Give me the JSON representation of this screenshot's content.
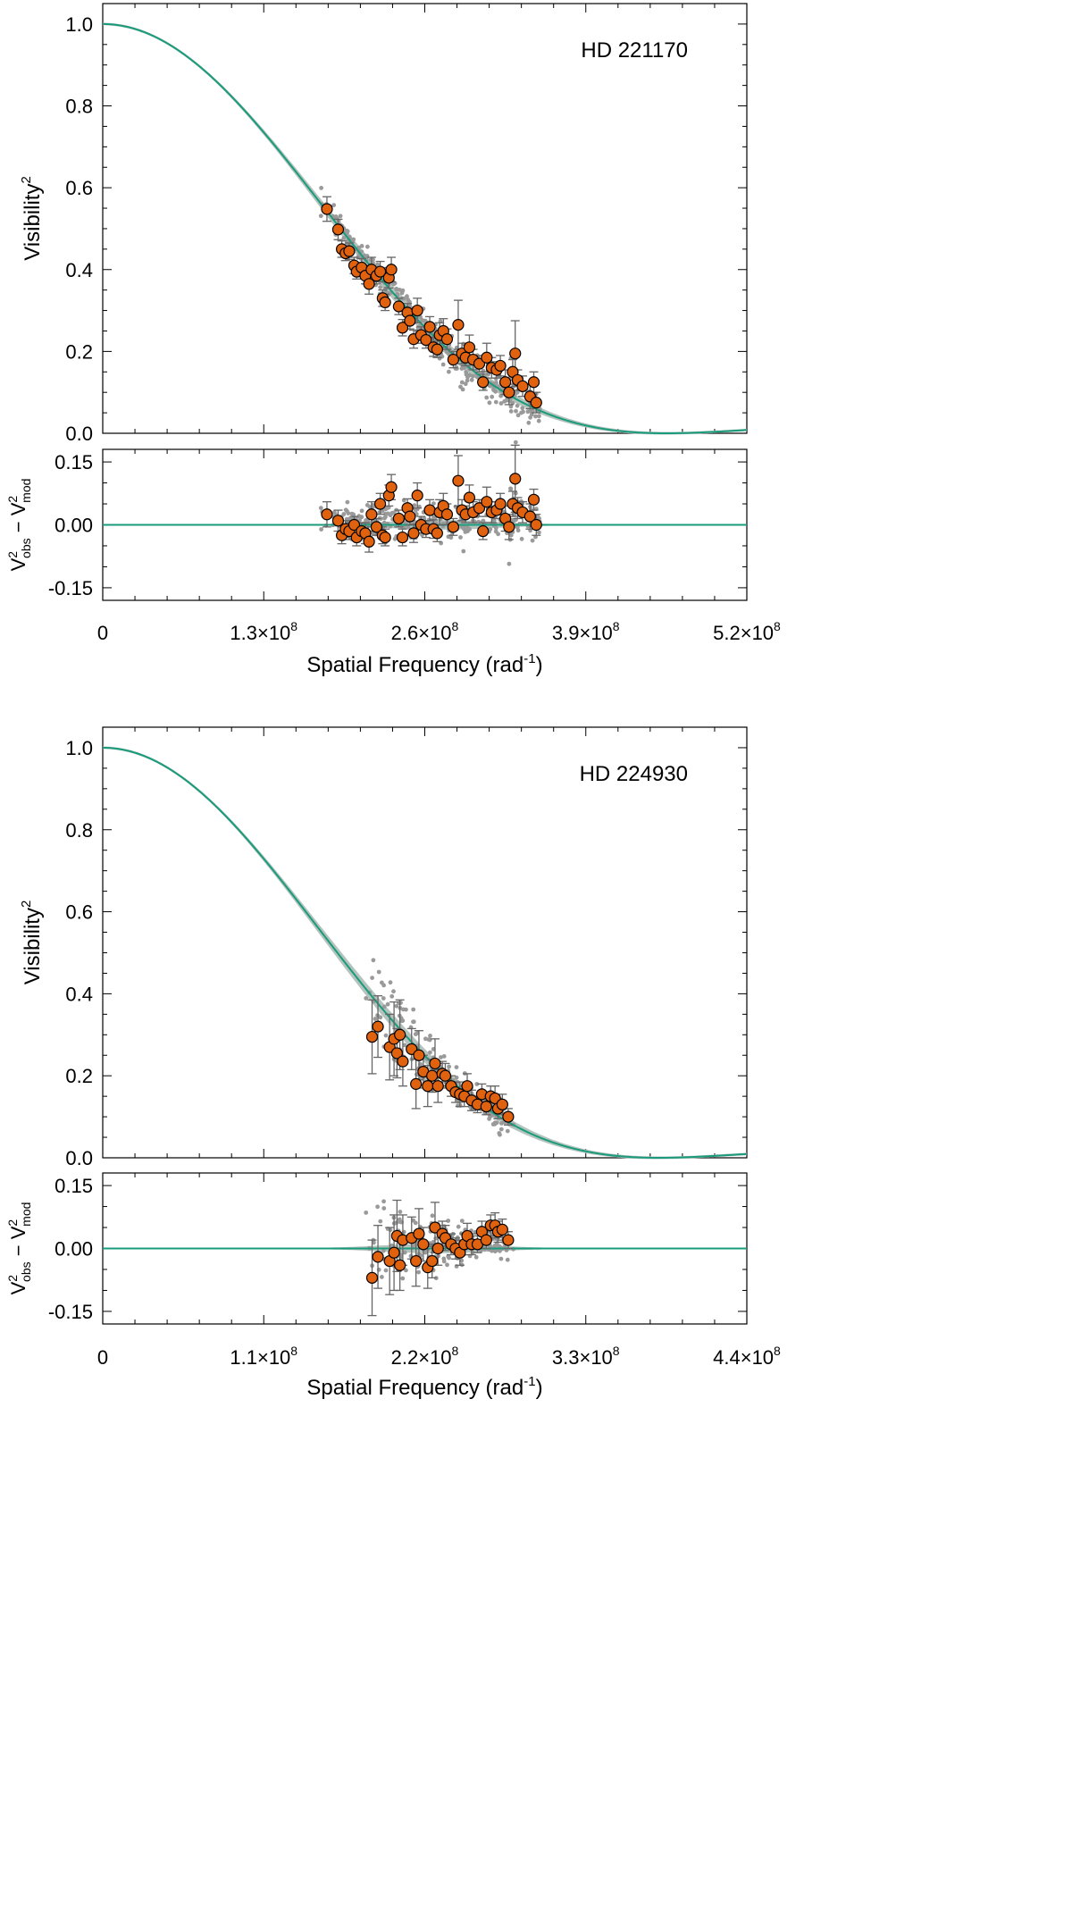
{
  "colors": {
    "model_line": "#1a9b7c",
    "band": "#b5c3bd",
    "point_fill": "#e0620f",
    "point_edge": "#000000",
    "raw_points": "#9a9a9a",
    "errorbar": "#666666"
  },
  "chart_data": [
    {
      "type": "scatter",
      "star": "HD 221170",
      "ylabel_base": "Visibility",
      "ylabel_sup": "2",
      "ylim": [
        0.0,
        1.05
      ],
      "yticks": [
        0.0,
        0.2,
        0.4,
        0.6,
        0.8,
        1.0
      ],
      "ytick_labels": [
        "0.0",
        "0.2",
        "0.4",
        "0.6",
        "0.8",
        "1.0"
      ],
      "xlim": [
        0,
        520000000
      ],
      "xticks": [
        0,
        130000000,
        260000000,
        390000000,
        520000000
      ],
      "xtick_labels": [
        {
          "mant": "0",
          "exp": ""
        },
        {
          "mant": "1.3×10",
          "exp": "8"
        },
        {
          "mant": "2.6×10",
          "exp": "8"
        },
        {
          "mant": "3.9×10",
          "exp": "8"
        },
        {
          "mant": "5.2×10",
          "exp": "8"
        }
      ],
      "xlabel_base": "Spatial Frequency (rad",
      "xlabel_sup": "-1",
      "xlabel_end": ")",
      "resid_ylim": [
        -0.18,
        0.18
      ],
      "resid_yticks": [
        -0.15,
        0.0,
        0.15
      ],
      "resid_ytick_labels": [
        "-0.15",
        "0.00",
        "0.15"
      ],
      "resid_label": {
        "v": "V",
        "sup": "2",
        "obs": "obs",
        "minus": " − ",
        "v2": "V",
        "sup2": "2",
        "mod": "mod"
      },
      "model_first_zero": 455000000,
      "model_max_x": 520000000,
      "points": [
        [
          181,
          0.548,
          0.03
        ],
        [
          190,
          0.498,
          0.025
        ],
        [
          193,
          0.45,
          0.02
        ],
        [
          196,
          0.44,
          0.018
        ],
        [
          199,
          0.445,
          0.02
        ],
        [
          203,
          0.41,
          0.02
        ],
        [
          205,
          0.395,
          0.018
        ],
        [
          209,
          0.405,
          0.022
        ],
        [
          212,
          0.385,
          0.02
        ],
        [
          215,
          0.365,
          0.025
        ],
        [
          217,
          0.4,
          0.03
        ],
        [
          221,
          0.385,
          0.02
        ],
        [
          224,
          0.395,
          0.025
        ],
        [
          226,
          0.33,
          0.02
        ],
        [
          228,
          0.32,
          0.02
        ],
        [
          231,
          0.38,
          0.025
        ],
        [
          233,
          0.4,
          0.03
        ],
        [
          239,
          0.31,
          0.02
        ],
        [
          242,
          0.258,
          0.02
        ],
        [
          246,
          0.295,
          0.022
        ],
        [
          248,
          0.275,
          0.02
        ],
        [
          251,
          0.23,
          0.022
        ],
        [
          254,
          0.3,
          0.03
        ],
        [
          257,
          0.24,
          0.02
        ],
        [
          261,
          0.228,
          0.02
        ],
        [
          264,
          0.26,
          0.025
        ],
        [
          267,
          0.21,
          0.022
        ],
        [
          270,
          0.205,
          0.02
        ],
        [
          272,
          0.24,
          0.03
        ],
        [
          275,
          0.25,
          0.03
        ],
        [
          278,
          0.23,
          0.025
        ],
        [
          283,
          0.18,
          0.02
        ],
        [
          287,
          0.265,
          0.06
        ],
        [
          290,
          0.195,
          0.025
        ],
        [
          293,
          0.185,
          0.02
        ],
        [
          296,
          0.21,
          0.03
        ],
        [
          299,
          0.18,
          0.025
        ],
        [
          304,
          0.17,
          0.02
        ],
        [
          307,
          0.125,
          0.02
        ],
        [
          310,
          0.185,
          0.035
        ],
        [
          314,
          0.16,
          0.025
        ],
        [
          318,
          0.155,
          0.02
        ],
        [
          321,
          0.165,
          0.025
        ],
        [
          325,
          0.125,
          0.03
        ],
        [
          328,
          0.1,
          0.03
        ],
        [
          331,
          0.15,
          0.03
        ],
        [
          333,
          0.195,
          0.08
        ],
        [
          335,
          0.13,
          0.025
        ],
        [
          339,
          0.115,
          0.025
        ],
        [
          345,
          0.09,
          0.03
        ],
        [
          348,
          0.125,
          0.025
        ],
        [
          350,
          0.075,
          0.025
        ]
      ],
      "residuals": [
        [
          181,
          0.025,
          0.03
        ],
        [
          190,
          0.01,
          0.025
        ],
        [
          193,
          -0.025,
          0.02
        ],
        [
          196,
          -0.01,
          0.02
        ],
        [
          199,
          -0.015,
          0.02
        ],
        [
          203,
          0.0,
          0.02
        ],
        [
          205,
          -0.03,
          0.02
        ],
        [
          209,
          -0.015,
          0.02
        ],
        [
          212,
          -0.02,
          0.025
        ],
        [
          215,
          -0.04,
          0.025
        ],
        [
          217,
          0.025,
          0.03
        ],
        [
          221,
          -0.005,
          0.02
        ],
        [
          224,
          0.05,
          0.025
        ],
        [
          226,
          -0.025,
          0.02
        ],
        [
          228,
          -0.03,
          0.02
        ],
        [
          231,
          0.07,
          0.025
        ],
        [
          233,
          0.09,
          0.03
        ],
        [
          239,
          0.015,
          0.02
        ],
        [
          242,
          -0.03,
          0.02
        ],
        [
          246,
          0.04,
          0.022
        ],
        [
          248,
          0.02,
          0.02
        ],
        [
          251,
          -0.02,
          0.022
        ],
        [
          254,
          0.07,
          0.03
        ],
        [
          257,
          0.0,
          0.02
        ],
        [
          261,
          -0.01,
          0.02
        ],
        [
          264,
          0.035,
          0.025
        ],
        [
          267,
          -0.01,
          0.022
        ],
        [
          270,
          -0.02,
          0.02
        ],
        [
          272,
          0.03,
          0.03
        ],
        [
          275,
          0.045,
          0.03
        ],
        [
          278,
          0.025,
          0.025
        ],
        [
          283,
          -0.005,
          0.02
        ],
        [
          287,
          0.105,
          0.06
        ],
        [
          290,
          0.035,
          0.025
        ],
        [
          293,
          0.025,
          0.02
        ],
        [
          296,
          0.065,
          0.03
        ],
        [
          299,
          0.03,
          0.025
        ],
        [
          304,
          0.04,
          0.02
        ],
        [
          307,
          -0.015,
          0.02
        ],
        [
          310,
          0.055,
          0.035
        ],
        [
          314,
          0.03,
          0.025
        ],
        [
          318,
          0.035,
          0.02
        ],
        [
          321,
          0.05,
          0.025
        ],
        [
          325,
          0.015,
          0.03
        ],
        [
          328,
          -0.005,
          0.03
        ],
        [
          331,
          0.05,
          0.03
        ],
        [
          333,
          0.11,
          0.08
        ],
        [
          335,
          0.04,
          0.025
        ],
        [
          339,
          0.03,
          0.025
        ],
        [
          345,
          0.02,
          0.03
        ],
        [
          348,
          0.06,
          0.025
        ],
        [
          350,
          0.0,
          0.025
        ]
      ]
    },
    {
      "type": "scatter",
      "star": "HD 224930",
      "ylabel_base": "Visibility",
      "ylabel_sup": "2",
      "ylim": [
        0.0,
        1.05
      ],
      "yticks": [
        0.0,
        0.2,
        0.4,
        0.6,
        0.8,
        1.0
      ],
      "ytick_labels": [
        "0.0",
        "0.2",
        "0.4",
        "0.6",
        "0.8",
        "1.0"
      ],
      "xlim": [
        0,
        440000000
      ],
      "xticks": [
        0,
        110000000,
        220000000,
        330000000,
        440000000
      ],
      "xtick_labels": [
        {
          "mant": "0",
          "exp": ""
        },
        {
          "mant": "1.1×10",
          "exp": "8"
        },
        {
          "mant": "2.2×10",
          "exp": "8"
        },
        {
          "mant": "3.3×10",
          "exp": "8"
        },
        {
          "mant": "4.4×10",
          "exp": "8"
        }
      ],
      "xlabel_base": "Spatial Frequency (rad",
      "xlabel_sup": "-1",
      "xlabel_end": ")",
      "resid_ylim": [
        -0.18,
        0.18
      ],
      "resid_yticks": [
        -0.15,
        0.0,
        0.15
      ],
      "resid_ytick_labels": [
        "-0.15",
        "0.00",
        "0.15"
      ],
      "resid_label": {
        "v": "V",
        "sup": "2",
        "obs": "obs",
        "minus": " − ",
        "v2": "V",
        "sup2": "2",
        "mod": "mod"
      },
      "model_first_zero": 380000000,
      "model_max_x": 440000000,
      "points": [
        [
          184,
          0.295,
          0.09
        ],
        [
          188,
          0.32,
          0.075
        ],
        [
          196,
          0.27,
          0.08
        ],
        [
          199,
          0.29,
          0.09
        ],
        [
          201,
          0.255,
          0.06
        ],
        [
          203,
          0.3,
          0.085
        ],
        [
          205,
          0.235,
          0.06
        ],
        [
          211,
          0.265,
          0.05
        ],
        [
          214,
          0.18,
          0.06
        ],
        [
          216,
          0.25,
          0.06
        ],
        [
          219,
          0.21,
          0.04
        ],
        [
          222,
          0.175,
          0.05
        ],
        [
          225,
          0.2,
          0.04
        ],
        [
          227,
          0.23,
          0.06
        ],
        [
          229,
          0.175,
          0.04
        ],
        [
          232,
          0.205,
          0.03
        ],
        [
          234,
          0.2,
          0.03
        ],
        [
          238,
          0.175,
          0.025
        ],
        [
          241,
          0.16,
          0.025
        ],
        [
          244,
          0.155,
          0.03
        ],
        [
          247,
          0.15,
          0.025
        ],
        [
          249,
          0.175,
          0.03
        ],
        [
          252,
          0.14,
          0.025
        ],
        [
          256,
          0.13,
          0.02
        ],
        [
          259,
          0.155,
          0.025
        ],
        [
          262,
          0.125,
          0.02
        ],
        [
          265,
          0.15,
          0.025
        ],
        [
          268,
          0.145,
          0.03
        ],
        [
          270,
          0.12,
          0.025
        ],
        [
          273,
          0.13,
          0.025
        ],
        [
          277,
          0.1,
          0.02
        ]
      ],
      "residuals": [
        [
          184,
          -0.07,
          0.09
        ],
        [
          188,
          -0.02,
          0.075
        ],
        [
          196,
          -0.03,
          0.08
        ],
        [
          199,
          -0.01,
          0.09
        ],
        [
          201,
          0.03,
          0.085
        ],
        [
          203,
          -0.04,
          0.06
        ],
        [
          205,
          0.02,
          0.06
        ],
        [
          211,
          0.025,
          0.05
        ],
        [
          214,
          -0.03,
          0.06
        ],
        [
          216,
          0.035,
          0.06
        ],
        [
          219,
          0.01,
          0.04
        ],
        [
          222,
          -0.045,
          0.05
        ],
        [
          225,
          -0.03,
          0.04
        ],
        [
          227,
          0.05,
          0.06
        ],
        [
          229,
          0.0,
          0.04
        ],
        [
          232,
          0.035,
          0.03
        ],
        [
          234,
          0.025,
          0.03
        ],
        [
          238,
          0.01,
          0.025
        ],
        [
          241,
          0.0,
          0.025
        ],
        [
          244,
          -0.01,
          0.03
        ],
        [
          247,
          0.01,
          0.025
        ],
        [
          249,
          0.03,
          0.03
        ],
        [
          252,
          0.01,
          0.025
        ],
        [
          256,
          0.01,
          0.02
        ],
        [
          259,
          0.04,
          0.025
        ],
        [
          262,
          0.02,
          0.02
        ],
        [
          265,
          0.055,
          0.025
        ],
        [
          268,
          0.055,
          0.03
        ],
        [
          270,
          0.04,
          0.025
        ],
        [
          273,
          0.045,
          0.025
        ],
        [
          277,
          0.02,
          0.02
        ]
      ]
    }
  ]
}
